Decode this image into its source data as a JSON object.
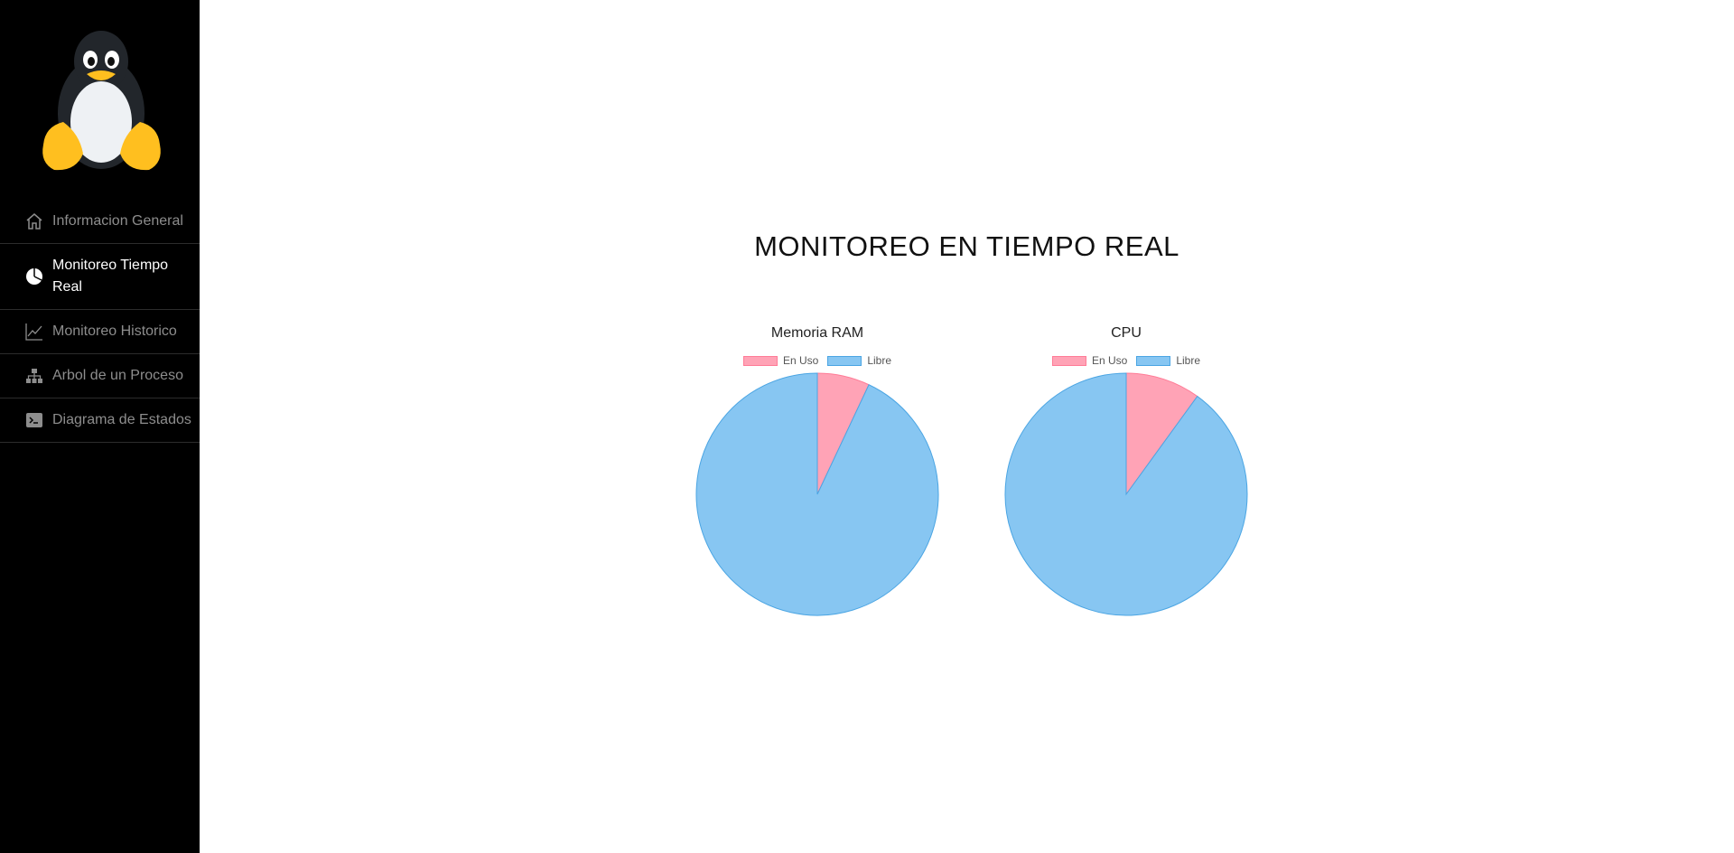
{
  "sidebar": {
    "items": [
      {
        "label": "Informacion General",
        "icon": "home-icon",
        "active": false
      },
      {
        "label": "Monitoreo Tiempo Real",
        "icon": "pie-chart-icon",
        "active": true
      },
      {
        "label": "Monitoreo Historico",
        "icon": "line-chart-icon",
        "active": false
      },
      {
        "label": "Arbol de un Proceso",
        "icon": "sitemap-icon",
        "active": false
      },
      {
        "label": "Diagrama de Estados",
        "icon": "terminal-icon",
        "active": false
      }
    ]
  },
  "main": {
    "title": "MONITOREO EN TIEMPO REAL"
  },
  "colors": {
    "sidebar_bg": "#000000",
    "in_use_fill": "#ffa3b6",
    "in_use_border": "#ff7c97",
    "free_fill": "#87c6f2",
    "free_border": "#4ba5e3"
  },
  "chart_data": [
    {
      "type": "pie",
      "title": "Memoria RAM",
      "labels": [
        "En Uso",
        "Libre"
      ],
      "values": [
        7,
        93
      ],
      "legend": "top"
    },
    {
      "type": "pie",
      "title": "CPU",
      "labels": [
        "En Uso",
        "Libre"
      ],
      "values": [
        10,
        90
      ],
      "legend": "top"
    }
  ]
}
